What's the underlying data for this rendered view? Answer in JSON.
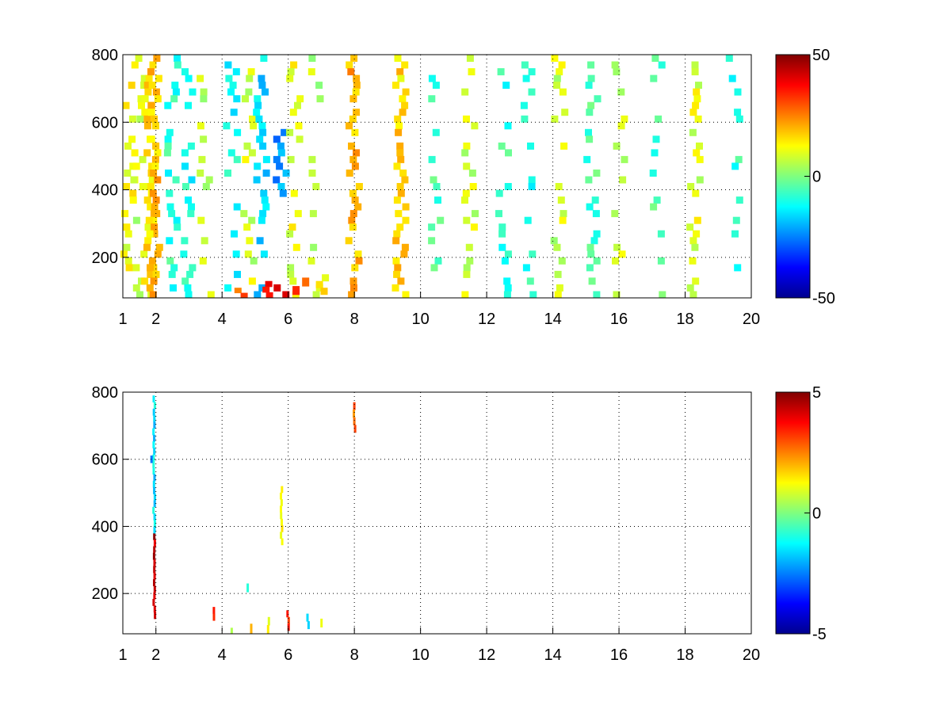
{
  "chart_data": [
    {
      "type": "heatmap",
      "title": "",
      "xlabel": "",
      "ylabel": "",
      "xlim": [
        1,
        20
      ],
      "ylim": [
        80,
        800
      ],
      "xticks": [
        1,
        2,
        4,
        6,
        8,
        10,
        12,
        14,
        16,
        18,
        20
      ],
      "xtick_labels": [
        "1",
        "2",
        "4",
        "6",
        "8",
        "10",
        "12",
        "14",
        "16",
        "18",
        "20"
      ],
      "yticks": [
        200,
        400,
        600,
        800
      ],
      "ytick_labels": [
        "200",
        "400",
        "600",
        "800"
      ],
      "grid": true,
      "colormap": "jet",
      "colorbar": {
        "min": -50,
        "max": 50,
        "ticks": [
          50,
          0,
          -50
        ],
        "tick_labels": [
          "50",
          "0",
          "-50"
        ]
      },
      "note": "",
      "cells": [
        {
          "x": 1.2,
          "y0": 80,
          "y1": 800,
          "v": 12,
          "density": 0.5
        },
        {
          "x": 1.5,
          "y0": 80,
          "y1": 800,
          "v": 8,
          "density": 0.5
        },
        {
          "x": 1.8,
          "y0": 80,
          "y1": 800,
          "v": 15,
          "density": 0.8
        },
        {
          "x": 1.95,
          "y0": 80,
          "y1": 800,
          "v": 18,
          "density": 0.9
        },
        {
          "x": 2.5,
          "y0": 80,
          "y1": 800,
          "v": -8,
          "density": 0.55
        },
        {
          "x": 3.0,
          "y0": 80,
          "y1": 800,
          "v": -10,
          "density": 0.55
        },
        {
          "x": 3.5,
          "y0": 80,
          "y1": 800,
          "v": 6,
          "density": 0.5
        },
        {
          "x": 4.3,
          "y0": 80,
          "y1": 800,
          "v": -12,
          "density": 0.55
        },
        {
          "x": 4.8,
          "y0": 80,
          "y1": 800,
          "v": 8,
          "density": 0.5
        },
        {
          "x": 5.2,
          "y0": 80,
          "y1": 800,
          "v": -15,
          "density": 0.6
        },
        {
          "x": 5.8,
          "y0": 380,
          "y1": 580,
          "v": -22,
          "density": 1.0
        },
        {
          "x": 6.2,
          "y0": 80,
          "y1": 800,
          "v": 10,
          "density": 0.55
        },
        {
          "x": 6.8,
          "y0": 80,
          "y1": 800,
          "v": 6,
          "density": 0.45
        },
        {
          "x": 8.0,
          "y0": 80,
          "y1": 800,
          "v": 20,
          "density": 0.9
        },
        {
          "x": 9.4,
          "y0": 80,
          "y1": 800,
          "v": 16,
          "density": 0.95
        },
        {
          "x": 10.5,
          "y0": 80,
          "y1": 800,
          "v": -6,
          "density": 0.45
        },
        {
          "x": 11.5,
          "y0": 80,
          "y1": 800,
          "v": 8,
          "density": 0.45
        },
        {
          "x": 12.5,
          "y0": 80,
          "y1": 800,
          "v": -8,
          "density": 0.4
        },
        {
          "x": 13.3,
          "y0": 80,
          "y1": 800,
          "v": -10,
          "density": 0.55
        },
        {
          "x": 14.2,
          "y0": 80,
          "y1": 800,
          "v": 8,
          "density": 0.5
        },
        {
          "x": 15.2,
          "y0": 80,
          "y1": 800,
          "v": -6,
          "density": 0.4
        },
        {
          "x": 16.0,
          "y0": 80,
          "y1": 800,
          "v": 7,
          "density": 0.45
        },
        {
          "x": 17.2,
          "y0": 80,
          "y1": 800,
          "v": -5,
          "density": 0.35
        },
        {
          "x": 18.3,
          "y0": 80,
          "y1": 800,
          "v": 9,
          "density": 0.55
        },
        {
          "x": 19.5,
          "y0": 80,
          "y1": 800,
          "v": -8,
          "density": 0.45
        },
        {
          "x": 4.6,
          "y0": 80,
          "y1": 110,
          "v": 28,
          "density": 1.0
        },
        {
          "x": 5.3,
          "y0": 80,
          "y1": 130,
          "v": 36,
          "density": 1.0
        },
        {
          "x": 5.8,
          "y0": 80,
          "y1": 120,
          "v": 42,
          "density": 1.0
        },
        {
          "x": 6.4,
          "y0": 90,
          "y1": 140,
          "v": 30,
          "density": 1.0
        },
        {
          "x": 7.0,
          "y0": 90,
          "y1": 150,
          "v": 12,
          "density": 1.0
        }
      ]
    },
    {
      "type": "heatmap",
      "title": "",
      "xlabel": "",
      "ylabel": "",
      "xlim": [
        1,
        20
      ],
      "ylim": [
        80,
        800
      ],
      "xticks": [
        1,
        2,
        4,
        6,
        8,
        10,
        12,
        14,
        16,
        18,
        20
      ],
      "xtick_labels": [
        "1",
        "2",
        "4",
        "6",
        "8",
        "10",
        "12",
        "14",
        "16",
        "18",
        "20"
      ],
      "yticks": [
        200,
        400,
        600,
        800
      ],
      "ytick_labels": [
        "200",
        "400",
        "600",
        "800"
      ],
      "grid": true,
      "colormap": "jet",
      "colorbar": {
        "min": -5,
        "max": 5,
        "ticks": [
          5,
          0,
          -5
        ],
        "tick_labels": [
          "5",
          "0",
          "-5"
        ]
      },
      "cells": [
        {
          "x": 1.95,
          "y0": 125,
          "y1": 380,
          "v": 4.5,
          "density": 1.0
        },
        {
          "x": 1.95,
          "y0": 380,
          "y1": 790,
          "v": -1.5,
          "density": 1.0
        },
        {
          "x": 1.85,
          "y0": 590,
          "y1": 760,
          "v": -3,
          "density": 0.3
        },
        {
          "x": 3.75,
          "y0": 120,
          "y1": 160,
          "v": 3.5,
          "density": 1.0
        },
        {
          "x": 4.8,
          "y0": 180,
          "y1": 230,
          "v": -1,
          "density": 0.5
        },
        {
          "x": 5.8,
          "y0": 345,
          "y1": 520,
          "v": 1.5,
          "density": 1.0
        },
        {
          "x": 8.0,
          "y0": 680,
          "y1": 770,
          "v": 2.8,
          "density": 1.0
        },
        {
          "x": 4.3,
          "y0": 82,
          "y1": 98,
          "v": 0.5,
          "density": 0.9
        },
        {
          "x": 4.9,
          "y0": 82,
          "y1": 110,
          "v": 2.5,
          "density": 0.9
        },
        {
          "x": 5.4,
          "y0": 82,
          "y1": 130,
          "v": 1.0,
          "density": 0.9
        },
        {
          "x": 6.0,
          "y0": 90,
          "y1": 150,
          "v": 3.0,
          "density": 0.9
        },
        {
          "x": 6.6,
          "y0": 95,
          "y1": 140,
          "v": -2.0,
          "density": 0.8
        },
        {
          "x": 7.0,
          "y0": 100,
          "y1": 125,
          "v": 0.5,
          "density": 0.8
        }
      ]
    }
  ]
}
